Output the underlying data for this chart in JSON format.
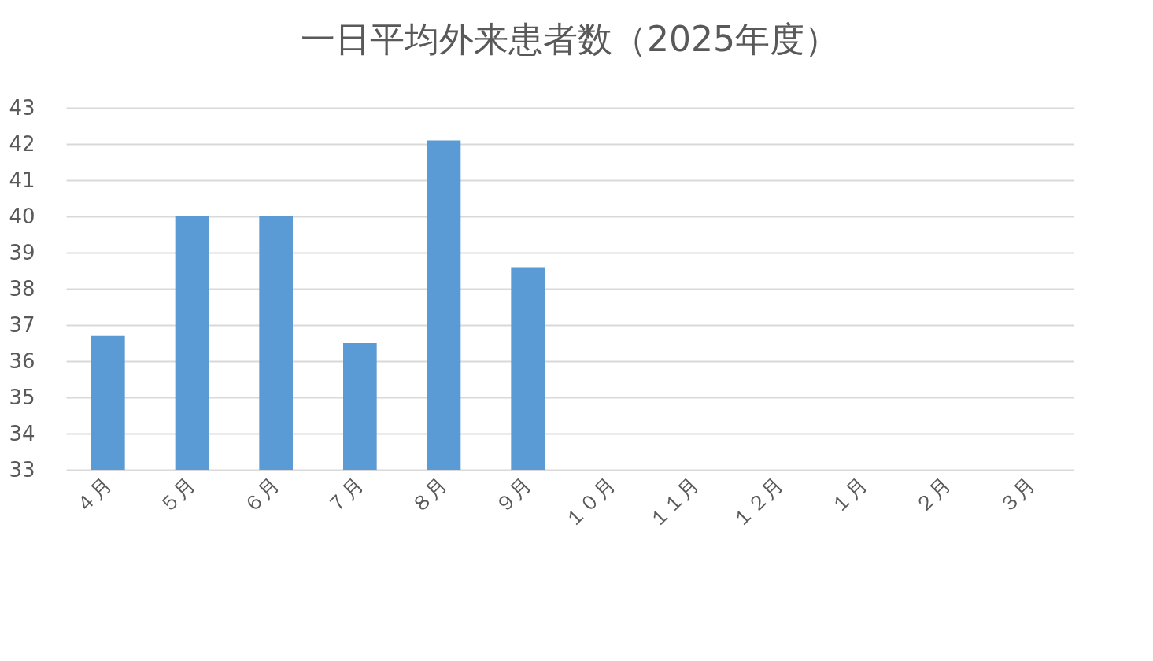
{
  "chart_data": {
    "type": "bar",
    "title": "一日平均外来患者数（2025年度）",
    "categories": [
      "４月",
      "５月",
      "６月",
      "７月",
      "８月",
      "９月",
      "１０月",
      "１１月",
      "１２月",
      "１月",
      "２月",
      "３月"
    ],
    "values": [
      36.7,
      40.0,
      40.0,
      36.5,
      42.1,
      38.6,
      null,
      null,
      null,
      null,
      null,
      null
    ],
    "color": "#5b9bd5",
    "ylim": [
      33,
      43
    ],
    "yticks": [
      33,
      34,
      35,
      36,
      37,
      38,
      39,
      40,
      41,
      42,
      43
    ],
    "grid": "y"
  }
}
